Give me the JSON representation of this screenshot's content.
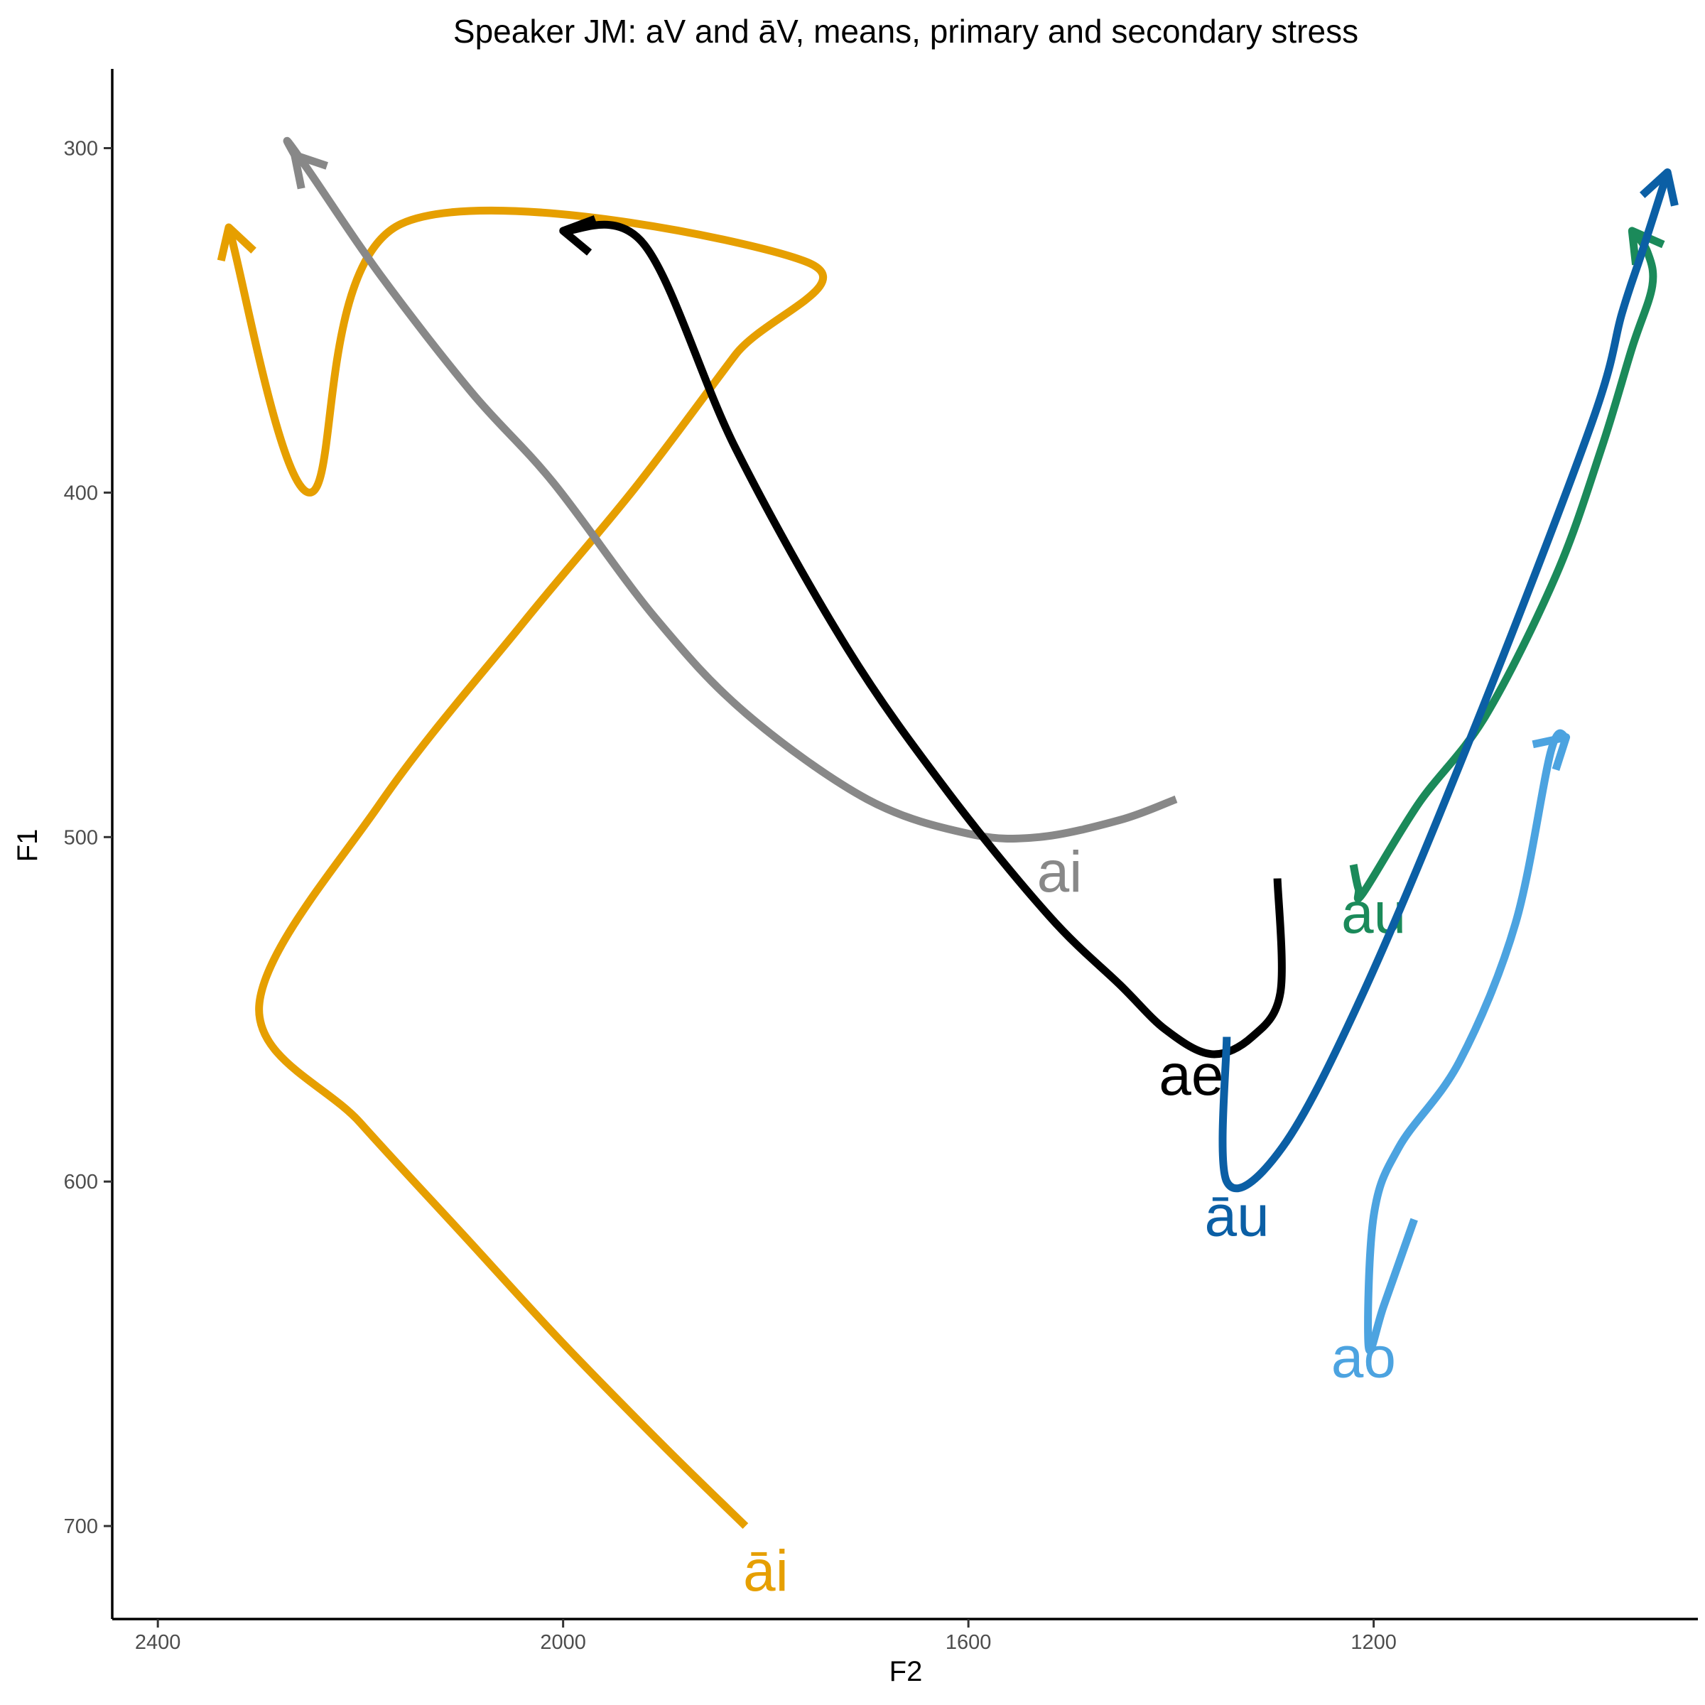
{
  "chart_data": {
    "type": "line",
    "title": "Speaker JM: aV and āV, means, primary and secondary stress",
    "xlabel": "F2",
    "ylabel": "F1",
    "x_reversed": true,
    "y_reversed": true,
    "xlim": [
      2445,
      880
    ],
    "ylim": [
      277,
      727
    ],
    "x_ticks": [
      2400,
      2000,
      1600,
      1200
    ],
    "y_ticks": [
      300,
      400,
      500,
      600,
      700
    ],
    "grid": false,
    "legend": "none (direct labels)",
    "series": [
      {
        "name": "āi",
        "color": "#E69F00",
        "points": [
          [
            1820,
            700
          ],
          [
            1900,
            677
          ],
          [
            2000,
            647
          ],
          [
            2100,
            615
          ],
          [
            2200,
            583
          ],
          [
            2300,
            549
          ],
          [
            2180,
            490
          ],
          [
            2040,
            438
          ],
          [
            1930,
            399
          ],
          [
            1830,
            360
          ],
          [
            1760,
            333
          ],
          [
            2160,
            322
          ],
          [
            2250,
            400
          ],
          [
            2330,
            323
          ]
        ],
        "label_pos": [
          1800,
          713
        ]
      },
      {
        "name": "ai",
        "color": "#888888",
        "points": [
          [
            1395,
            489
          ],
          [
            1450,
            495
          ],
          [
            1530,
            500
          ],
          [
            1600,
            499
          ],
          [
            1700,
            489
          ],
          [
            1820,
            464
          ],
          [
            1910,
            436
          ],
          [
            2010,
            397
          ],
          [
            2090,
            371
          ],
          [
            2180,
            337
          ],
          [
            2250,
            307
          ],
          [
            2272,
            298
          ],
          [
            2265,
            302
          ]
        ],
        "label_pos": [
          1510,
          510
        ]
      },
      {
        "name": "ae",
        "color": "#000000",
        "points": [
          [
            1295,
            512
          ],
          [
            1292,
            545
          ],
          [
            1320,
            558
          ],
          [
            1360,
            563
          ],
          [
            1405,
            556
          ],
          [
            1450,
            543
          ],
          [
            1520,
            523
          ],
          [
            1620,
            487
          ],
          [
            1720,
            445
          ],
          [
            1830,
            387
          ],
          [
            1920,
            328
          ],
          [
            2000,
            324
          ]
        ],
        "label_pos": [
          1380,
          569
        ]
      },
      {
        "name": "au",
        "color": "#1B8A5A",
        "points": [
          [
            1220,
            508
          ],
          [
            1215,
            515
          ],
          [
            1210,
            516
          ],
          [
            1155,
            490
          ],
          [
            1090,
            465
          ],
          [
            1020,
            424
          ],
          [
            975,
            387
          ],
          [
            945,
            358
          ],
          [
            925,
            340
          ],
          [
            930,
            330
          ],
          [
            945,
            324
          ]
        ],
        "label_pos": [
          1200,
          522
        ]
      },
      {
        "name": "āu",
        "color": "#0B5FA5",
        "points": [
          [
            1345,
            558
          ],
          [
            1345,
            600
          ],
          [
            1290,
            590
          ],
          [
            1210,
            545
          ],
          [
            1100,
            468
          ],
          [
            985,
            380
          ],
          [
            955,
            348
          ],
          [
            935,
            330
          ],
          [
            910,
            307
          ]
        ],
        "label_pos": [
          1335,
          610
        ]
      },
      {
        "name": "ao",
        "color": "#4CA3E0",
        "points": [
          [
            1160,
            611
          ],
          [
            1190,
            636
          ],
          [
            1205,
            648
          ],
          [
            1200,
            610
          ],
          [
            1175,
            590
          ],
          [
            1115,
            565
          ],
          [
            1060,
            525
          ],
          [
            1025,
            475
          ],
          [
            1010,
            471
          ]
        ],
        "label_pos": [
          1210,
          651
        ]
      }
    ]
  }
}
